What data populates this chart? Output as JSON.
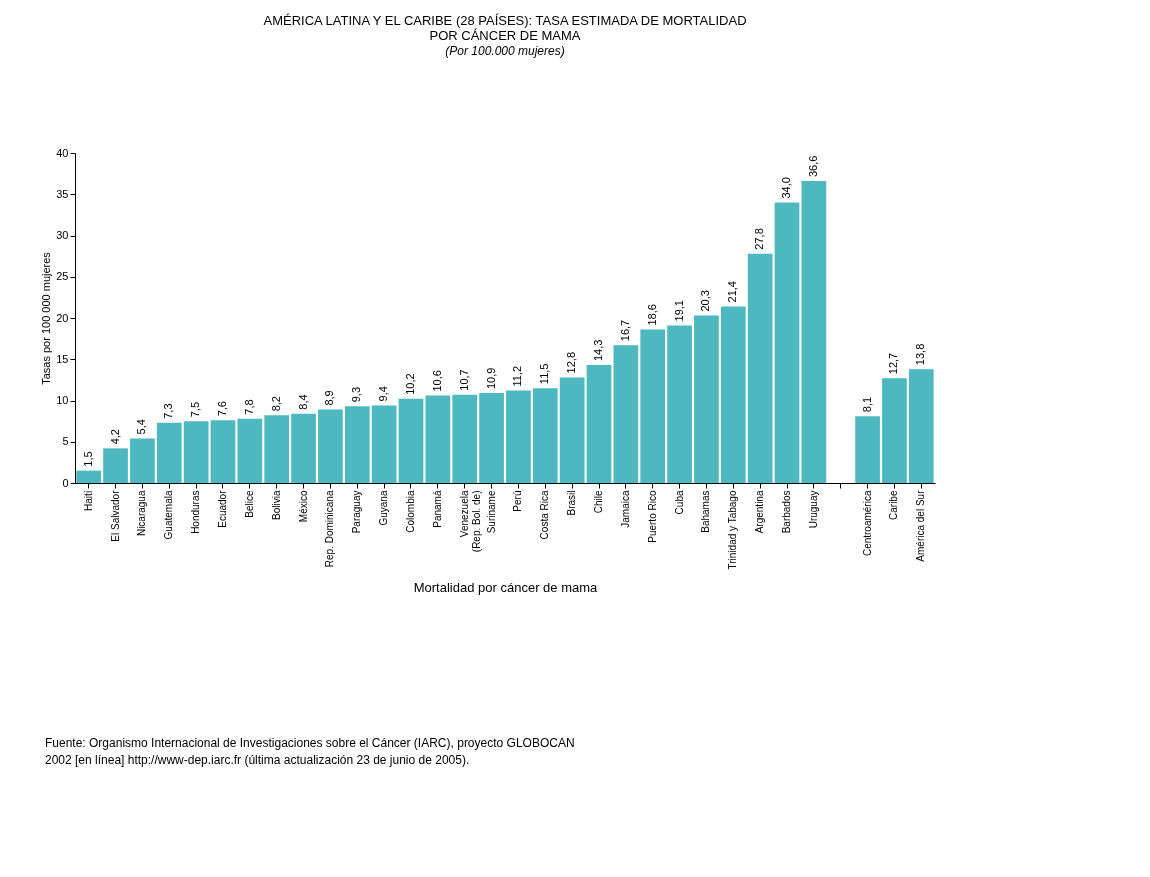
{
  "chart_data": {
    "type": "bar",
    "title": "AMÉRICA LATINA Y EL CARIBE (28 PAÍSES): TASA ESTIMADA DE MORTALIDAD\nPOR CÁNCER DE MAMA",
    "subtitle": "(Por 100.000 mujeres)",
    "xlabel": "Mortalidad por cáncer de mama",
    "ylabel": "Tasas por 100 000 mujeres",
    "categories": [
      "Haití",
      "El Salvador",
      "Nicaragua",
      "Guatemala",
      "Honduras",
      "Ecuador",
      "Belice",
      "Bolivia",
      "México",
      "Rep. Dominicana",
      "Paraguay",
      "Guyana",
      "Colombia",
      "Panamá",
      "Venezuela\n(Rep. Bol. de)",
      "Suriname",
      "Perú",
      "Costa Rica",
      "Brasil",
      "Chile",
      "Jamaica",
      "Puerto Rico",
      "Cuba",
      "Bahamas",
      "Trinidad y Tabago",
      "Argentina",
      "Barbados",
      "Uruguay",
      null,
      "Centroamérica",
      "Caribe",
      "América del Sur"
    ],
    "values": [
      1.5,
      4.2,
      5.4,
      7.3,
      7.5,
      7.6,
      7.8,
      8.2,
      8.4,
      8.9,
      9.3,
      9.4,
      10.2,
      10.6,
      10.7,
      10.9,
      11.2,
      11.5,
      12.8,
      14.3,
      16.7,
      18.6,
      19.1,
      20.3,
      21.4,
      27.8,
      34.0,
      36.6,
      null,
      8.1,
      12.7,
      13.8
    ],
    "value_labels": [
      "1,5",
      "4,2",
      "5,4",
      "7,3",
      "7,5",
      "7,6",
      "7,8",
      "8,2",
      "8,4",
      "8,9",
      "9,3",
      "9,4",
      "10,2",
      "10,6",
      "10,7",
      "10,9",
      "11,2",
      "11,5",
      "12,8",
      "14,3",
      "16,7",
      "18,6",
      "19,1",
      "20,3",
      "21,4",
      "27,8",
      "34,0",
      "36,6",
      null,
      "8,1",
      "12,7",
      "13,8"
    ],
    "color": "#4db8bf",
    "ylim": [
      0,
      40
    ],
    "yticks": [
      0,
      5,
      10,
      15,
      20,
      25,
      30,
      35,
      40
    ],
    "grid": false,
    "annotations": [
      "Fuente: Organismo Internacional de Investigaciones sobre el Cáncer (IARC), proyecto GLOBOCAN\n2002 [en línea] http://www-dep.iarc.fr (última actualización 23 de junio de 2005)."
    ]
  }
}
